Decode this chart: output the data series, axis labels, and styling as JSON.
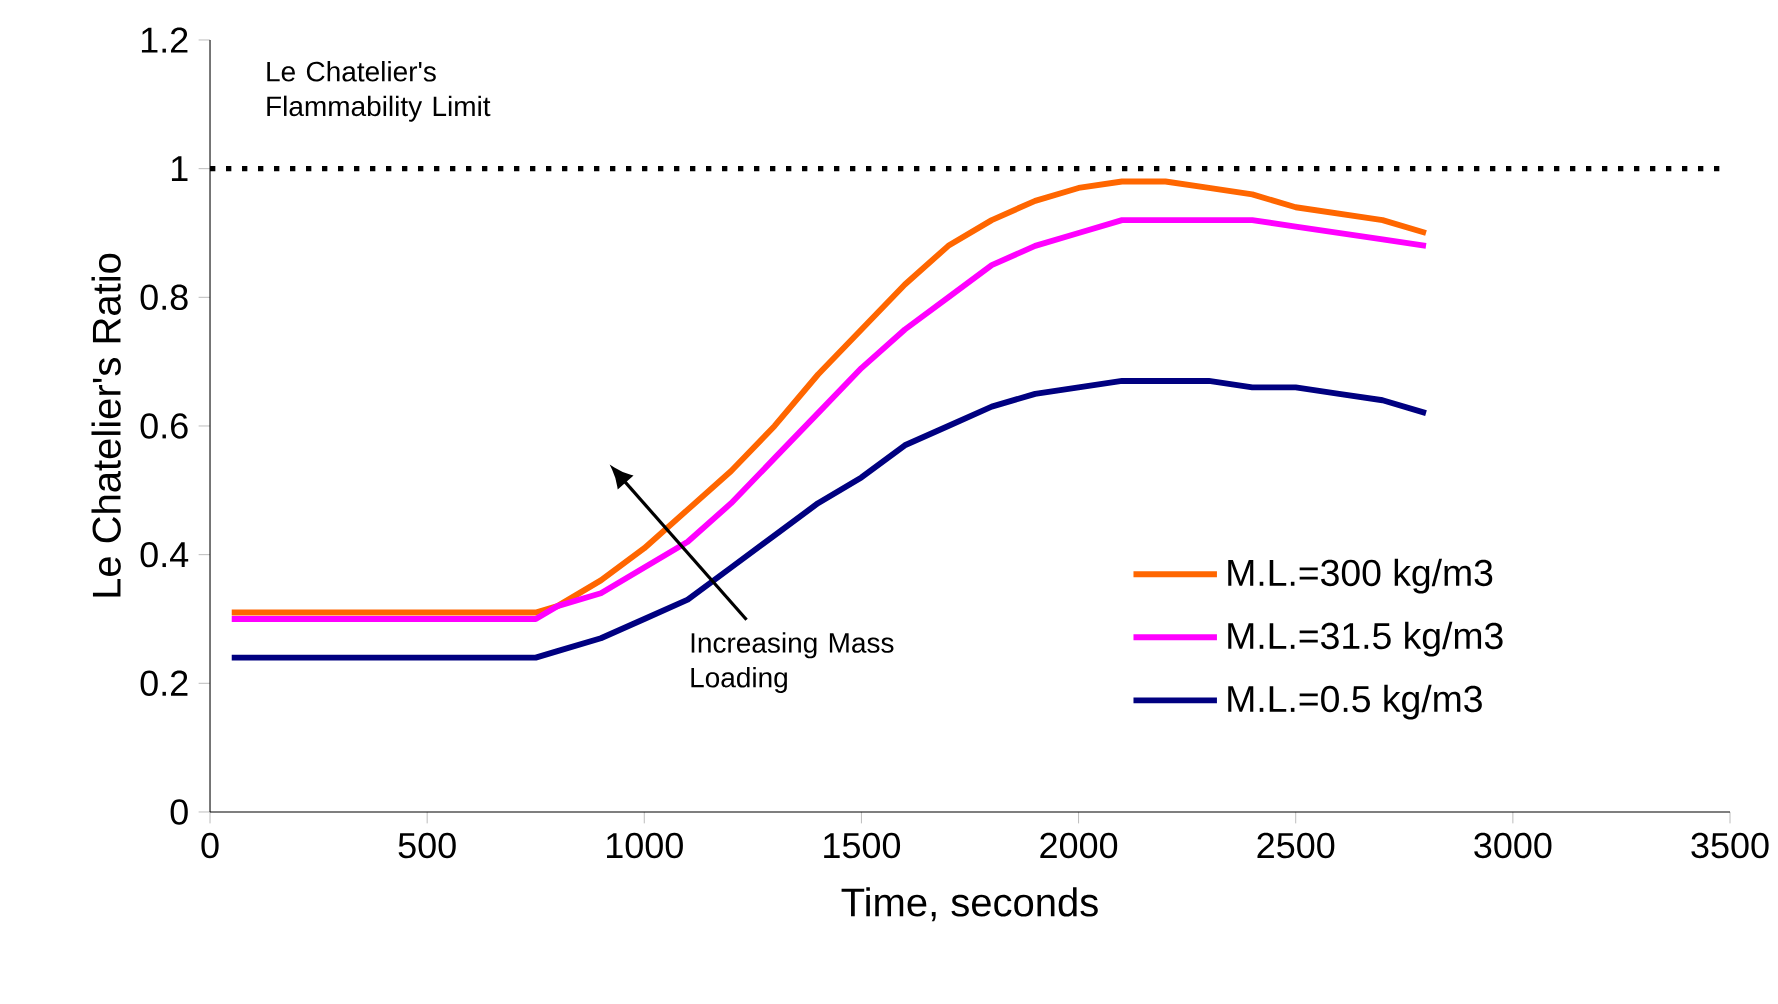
{
  "chart_data": {
    "type": "line",
    "xlabel": "Time, seconds",
    "ylabel": "Le Chatelier's Ratio",
    "x": [
      50,
      100,
      200,
      300,
      400,
      500,
      600,
      700,
      750,
      800,
      900,
      1000,
      1100,
      1200,
      1300,
      1400,
      1500,
      1600,
      1700,
      1800,
      1900,
      2000,
      2100,
      2200,
      2300,
      2400,
      2500,
      2600,
      2700,
      2800
    ],
    "series": [
      {
        "name": "M.L.=300 kg/m3",
        "color": "#ff6600",
        "values": [
          0.31,
          0.31,
          0.31,
          0.31,
          0.31,
          0.31,
          0.31,
          0.31,
          0.31,
          0.32,
          0.36,
          0.41,
          0.47,
          0.53,
          0.6,
          0.68,
          0.75,
          0.82,
          0.88,
          0.92,
          0.95,
          0.97,
          0.98,
          0.98,
          0.97,
          0.96,
          0.94,
          0.93,
          0.92,
          0.9
        ]
      },
      {
        "name": "M.L.=31.5 kg/m3",
        "color": "#ff00ff",
        "values": [
          0.3,
          0.3,
          0.3,
          0.3,
          0.3,
          0.3,
          0.3,
          0.3,
          0.3,
          0.32,
          0.34,
          0.38,
          0.42,
          0.48,
          0.55,
          0.62,
          0.69,
          0.75,
          0.8,
          0.85,
          0.88,
          0.9,
          0.92,
          0.92,
          0.92,
          0.92,
          0.91,
          0.9,
          0.89,
          0.88
        ]
      },
      {
        "name": "M.L.=0.5 kg/m3",
        "color": "#000080",
        "values": [
          0.24,
          0.24,
          0.24,
          0.24,
          0.24,
          0.24,
          0.24,
          0.24,
          0.24,
          0.25,
          0.27,
          0.3,
          0.33,
          0.38,
          0.43,
          0.48,
          0.52,
          0.57,
          0.6,
          0.63,
          0.65,
          0.66,
          0.67,
          0.67,
          0.67,
          0.66,
          0.66,
          0.65,
          0.64,
          0.62
        ]
      }
    ],
    "xlim": [
      0,
      3500
    ],
    "xticks": [
      0,
      500,
      1000,
      1500,
      2000,
      2500,
      3000,
      3500
    ],
    "ylim": [
      0,
      1.2
    ],
    "yticks": [
      0,
      0.2,
      0.4,
      0.6,
      0.8,
      1,
      1.2
    ],
    "ref_lines": [
      {
        "axis": "y",
        "value": 1,
        "label": "Le Chatelier's Flammability Limit",
        "color": "#000000",
        "line_style": "dotted"
      }
    ],
    "annotations": [
      "Increasing Mass Loading"
    ],
    "legend": "right",
    "grid": false,
    "marker": "none",
    "line_style": "solid"
  }
}
